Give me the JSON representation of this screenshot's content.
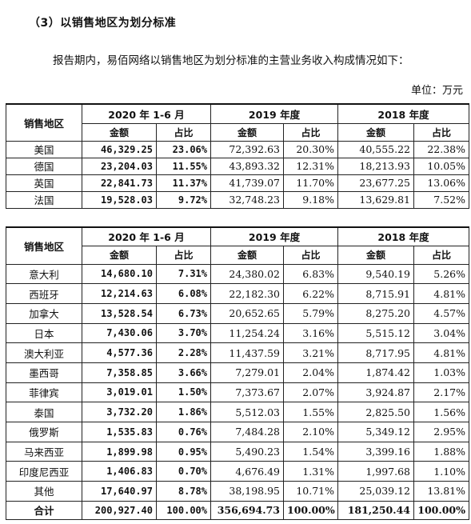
{
  "heading": "（3）以销售地区为划分标准",
  "intro": "报告期内，易佰网络以销售地区为划分标准的主营业务收入构成情况如下：",
  "unit": "单位：万元",
  "headers": {
    "region": "销售地区",
    "period1": "2020 年 1-6 月",
    "period2": "2019 年度",
    "period3": "2018 年度",
    "amount": "金额",
    "share": "占比"
  },
  "table1": [
    {
      "region": "美国",
      "v1": "46,329.25",
      "p1": "23.06%",
      "v2": "72,392.63",
      "p2": "20.30%",
      "v3": "40,555.22",
      "p3": "22.38%"
    },
    {
      "region": "德国",
      "v1": "23,204.03",
      "p1": "11.55%",
      "v2": "43,893.32",
      "p2": "12.31%",
      "v3": "18,213.93",
      "p3": "10.05%"
    },
    {
      "region": "英国",
      "v1": "22,841.73",
      "p1": "11.37%",
      "v2": "41,739.07",
      "p2": "11.70%",
      "v3": "23,677.25",
      "p3": "13.06%"
    },
    {
      "region": "法国",
      "v1": "19,528.03",
      "p1": "9.72%",
      "v2": "32,748.23",
      "p2": "9.18%",
      "v3": "13,629.81",
      "p3": "7.52%"
    }
  ],
  "table2": [
    {
      "region": "意大利",
      "v1": "14,680.10",
      "p1": "7.31%",
      "v2": "24,380.02",
      "p2": "6.83%",
      "v3": "9,540.19",
      "p3": "5.26%"
    },
    {
      "region": "西班牙",
      "v1": "12,214.63",
      "p1": "6.08%",
      "v2": "22,182.30",
      "p2": "6.22%",
      "v3": "8,715.91",
      "p3": "4.81%"
    },
    {
      "region": "加拿大",
      "v1": "13,528.54",
      "p1": "6.73%",
      "v2": "20,652.65",
      "p2": "5.79%",
      "v3": "8,275.20",
      "p3": "4.57%"
    },
    {
      "region": "日本",
      "v1": "7,430.06",
      "p1": "3.70%",
      "v2": "11,254.24",
      "p2": "3.16%",
      "v3": "5,515.12",
      "p3": "3.04%"
    },
    {
      "region": "澳大利亚",
      "v1": "4,577.36",
      "p1": "2.28%",
      "v2": "11,437.59",
      "p2": "3.21%",
      "v3": "8,717.95",
      "p3": "4.81%"
    },
    {
      "region": "墨西哥",
      "v1": "7,358.85",
      "p1": "3.66%",
      "v2": "7,279.01",
      "p2": "2.04%",
      "v3": "1,874.42",
      "p3": "1.03%"
    },
    {
      "region": "菲律宾",
      "v1": "3,019.01",
      "p1": "1.50%",
      "v2": "7,373.67",
      "p2": "2.07%",
      "v3": "3,924.87",
      "p3": "2.17%"
    },
    {
      "region": "泰国",
      "v1": "3,732.20",
      "p1": "1.86%",
      "v2": "5,512.03",
      "p2": "1.55%",
      "v3": "2,825.50",
      "p3": "1.56%"
    },
    {
      "region": "俄罗斯",
      "v1": "1,535.83",
      "p1": "0.76%",
      "v2": "7,484.28",
      "p2": "2.10%",
      "v3": "5,349.12",
      "p3": "2.95%"
    },
    {
      "region": "马来西亚",
      "v1": "1,899.98",
      "p1": "0.95%",
      "v2": "5,490.23",
      "p2": "1.54%",
      "v3": "3,399.16",
      "p3": "1.88%"
    },
    {
      "region": "印度尼西亚",
      "v1": "1,406.83",
      "p1": "0.70%",
      "v2": "4,676.49",
      "p2": "1.31%",
      "v3": "1,997.68",
      "p3": "1.10%"
    },
    {
      "region": "其他",
      "v1": "17,640.97",
      "p1": "8.78%",
      "v2": "38,198.95",
      "p2": "10.71%",
      "v3": "25,039.12",
      "p3": "13.81%"
    }
  ],
  "total": {
    "region": "合计",
    "v1": "200,927.40",
    "p1": "100.00%",
    "v2": "356,694.73",
    "p2": "100.00%",
    "v3": "181,250.44",
    "p3": "100.00%"
  }
}
